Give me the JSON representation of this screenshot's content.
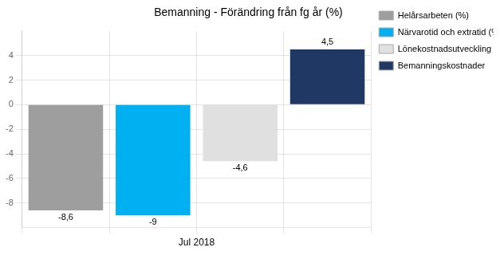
{
  "chart_data": {
    "type": "bar",
    "title": "Bemanning - Förändring från fg år (%)",
    "xlabel": "Jul 2018",
    "categories": [
      "Helårsarbeten (%)",
      "Närvarotid och extratid (%)",
      "Lönekostnadsutveckling",
      "Bemanningskostnader"
    ],
    "values": [
      -8.6,
      -9.0,
      -4.6,
      4.5
    ],
    "value_labels": [
      "-8,6",
      "-9",
      "-4,6",
      "4,5"
    ],
    "colors": [
      "#9e9e9e",
      "#00b0f0",
      "#e0e0e0",
      "#1f3864"
    ],
    "ylim": [
      -10,
      6
    ],
    "yticks": [
      -8,
      -6,
      -4,
      -2,
      0,
      2,
      4
    ],
    "grid": true,
    "legend": "right",
    "data_labels": true,
    "tick_labels": "y"
  }
}
